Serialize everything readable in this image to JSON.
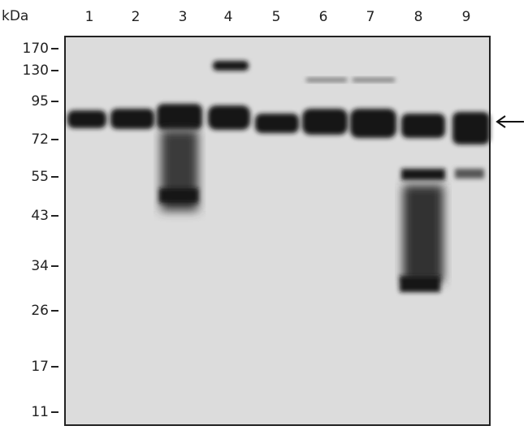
{
  "axis_unit": "kDa",
  "lanes": [
    "1",
    "2",
    "3",
    "4",
    "5",
    "6",
    "7",
    "8",
    "9"
  ],
  "markers": [
    "170",
    "130",
    "95",
    "72",
    "55",
    "43",
    "34",
    "26",
    "17",
    "11"
  ]
}
